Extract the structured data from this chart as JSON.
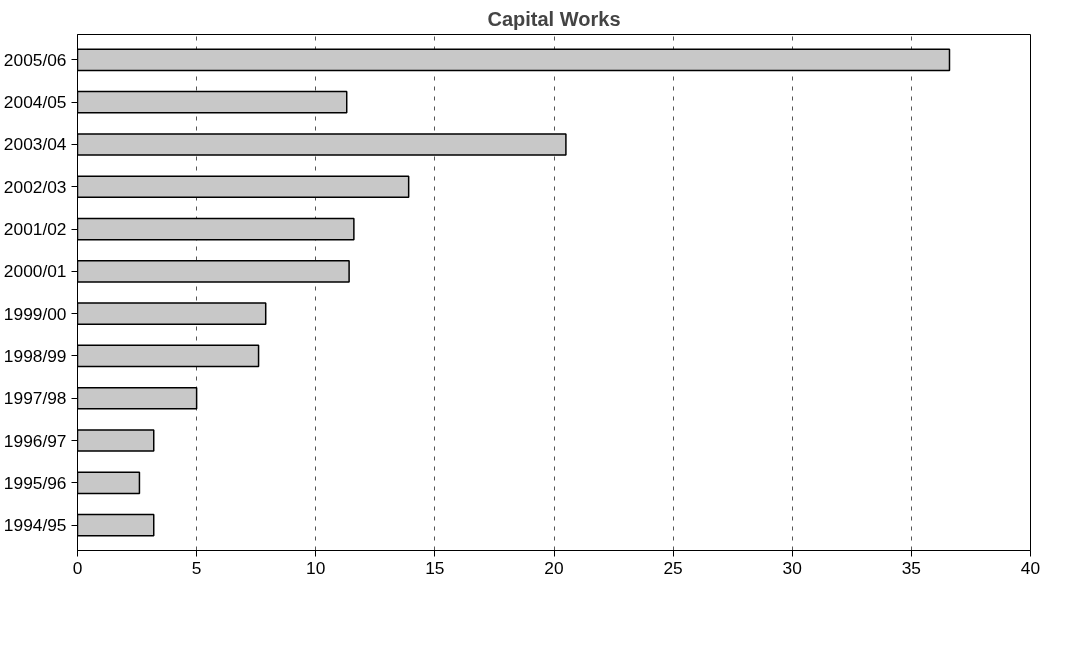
{
  "chart_data": {
    "type": "bar",
    "orientation": "horizontal",
    "title": "Capital Works",
    "categories": [
      "2005/06",
      "2004/05",
      "2003/04",
      "2002/03",
      "2001/02",
      "2000/01",
      "1999/00",
      "1998/99",
      "1997/98",
      "1996/97",
      "1995/96",
      "1994/95"
    ],
    "values": [
      36.6,
      11.3,
      20.5,
      13.9,
      11.6,
      11.4,
      7.9,
      7.6,
      5.0,
      3.2,
      2.6,
      3.2
    ],
    "color": "#c8c8c8",
    "xlim": [
      0,
      40
    ],
    "xticks": [
      0,
      5,
      10,
      15,
      20,
      25,
      30,
      35,
      40
    ],
    "grid": "x"
  }
}
